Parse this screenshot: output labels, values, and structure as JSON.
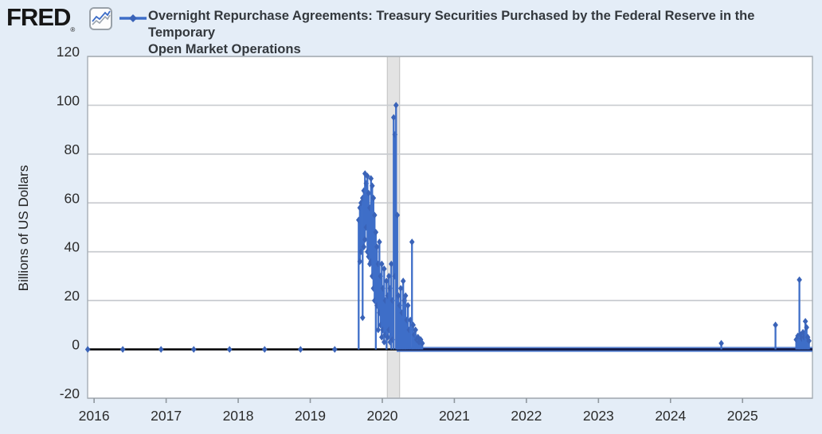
{
  "header": {
    "logo_text": "FRED",
    "logo_registered": "®",
    "title_line1": "Overnight Repurchase Agreements: Treasury Securities Purchased by the Federal Reserve in the Temporary",
    "title_line2": "Open Market Operations"
  },
  "colors": {
    "background": "#e4edf7",
    "plot_bg": "#ffffff",
    "grid": "#c9ccd0",
    "frame": "#a6adb5",
    "tick_mark": "#8f979e",
    "tick_text": "#2b2b2b",
    "title_text": "#33383d",
    "series_line": "#3e6ec8",
    "series_marker": "#3a63b8",
    "zero_line": "#060709",
    "dense_line_halo": "#3e6ec8",
    "dense_line_core": "#131c4a",
    "recession_band": "#e3e3e3",
    "recession_edge": "#c6c6c6",
    "logo_zigzag_blue": "#3e6ec8",
    "logo_zigzag_gray": "#9aa3ad"
  },
  "chart_data": {
    "type": "line",
    "title": "Overnight Repurchase Agreements: Treasury Securities Purchased by the Federal Reserve in the Temporary Open Market Operations",
    "xlabel": "",
    "ylabel": "Billions of US Dollars",
    "units": "Billions of US Dollars",
    "grid": "horizontal",
    "legend_position": "top",
    "ylim": [
      -20,
      120
    ],
    "xlim": [
      2015.91,
      2025.97
    ],
    "y_ticks": [
      120,
      100,
      80,
      60,
      40,
      20,
      0,
      -20
    ],
    "x_ticks": [
      2016,
      2017,
      2018,
      2019,
      2020,
      2021,
      2022,
      2023,
      2024,
      2025
    ],
    "recession_band_x": [
      2020.07,
      2020.24
    ],
    "zero_value_marker_x": [
      2015.912,
      2016.398,
      2016.929,
      2017.383,
      2017.88,
      2018.367,
      2018.865,
      2019.34
    ],
    "dense_zero_segment_x": [
      2020.2,
      2025.97
    ],
    "spikes": [
      [
        2019.672,
        53,
        0
      ],
      [
        2019.689,
        58,
        36
      ],
      [
        2019.705,
        60,
        40
      ],
      [
        2019.727,
        62,
        13
      ],
      [
        2019.744,
        65,
        42
      ],
      [
        2019.76,
        72,
        45
      ],
      [
        2019.777,
        68,
        50
      ],
      [
        2019.794,
        71,
        40
      ],
      [
        2019.81,
        64,
        38
      ],
      [
        2019.827,
        58,
        35
      ],
      [
        2019.843,
        70,
        36
      ],
      [
        2019.86,
        67,
        30
      ],
      [
        2019.877,
        62,
        25
      ],
      [
        2019.893,
        55,
        20
      ],
      [
        2019.91,
        48,
        0
      ],
      [
        2019.926,
        42,
        18
      ],
      [
        2019.943,
        35,
        8
      ],
      [
        2019.96,
        44,
        15
      ],
      [
        2019.976,
        30,
        10
      ],
      [
        2019.993,
        35,
        5
      ],
      [
        2020.009,
        25,
        8
      ],
      [
        2020.026,
        33,
        3
      ],
      [
        2020.042,
        20,
        6
      ],
      [
        2020.059,
        28,
        0
      ],
      [
        2020.076,
        22,
        5
      ],
      [
        2020.092,
        30,
        8
      ],
      [
        2020.109,
        25,
        3
      ],
      [
        2020.125,
        35,
        0
      ],
      [
        2020.142,
        20,
        4
      ],
      [
        2020.158,
        95,
        0
      ],
      [
        2020.175,
        88,
        30
      ],
      [
        2020.191,
        100,
        0
      ],
      [
        2020.208,
        55,
        0
      ],
      [
        2020.224,
        22,
        0
      ],
      [
        2020.241,
        18,
        0
      ],
      [
        2020.257,
        25,
        0
      ],
      [
        2020.274,
        15,
        0
      ],
      [
        2020.29,
        28,
        0
      ],
      [
        2020.307,
        20,
        0
      ],
      [
        2020.323,
        22,
        0
      ],
      [
        2020.34,
        12,
        0
      ],
      [
        2020.356,
        18,
        0
      ],
      [
        2020.373,
        8,
        0
      ],
      [
        2020.389,
        12,
        0
      ],
      [
        2020.412,
        44,
        0
      ],
      [
        2020.428,
        10,
        0
      ],
      [
        2020.445,
        6,
        0
      ],
      [
        2020.461,
        8,
        0
      ],
      [
        2020.478,
        4,
        0
      ],
      [
        2020.495,
        5,
        0
      ],
      [
        2020.511,
        3,
        0
      ],
      [
        2020.533,
        4,
        0
      ],
      [
        2020.555,
        2.5,
        0
      ],
      [
        2024.705,
        2.5,
        0
      ],
      [
        2025.457,
        10,
        0
      ],
      [
        2025.745,
        4,
        0
      ],
      [
        2025.767,
        5.5,
        0
      ],
      [
        2025.789,
        28.5,
        0
      ],
      [
        2025.806,
        6,
        0
      ],
      [
        2025.822,
        4.5,
        0
      ],
      [
        2025.839,
        7,
        0
      ],
      [
        2025.855,
        5,
        0
      ],
      [
        2025.872,
        11.5,
        0
      ],
      [
        2025.889,
        9,
        0
      ],
      [
        2025.905,
        5,
        0
      ],
      [
        2025.922,
        3.5,
        0
      ]
    ]
  }
}
